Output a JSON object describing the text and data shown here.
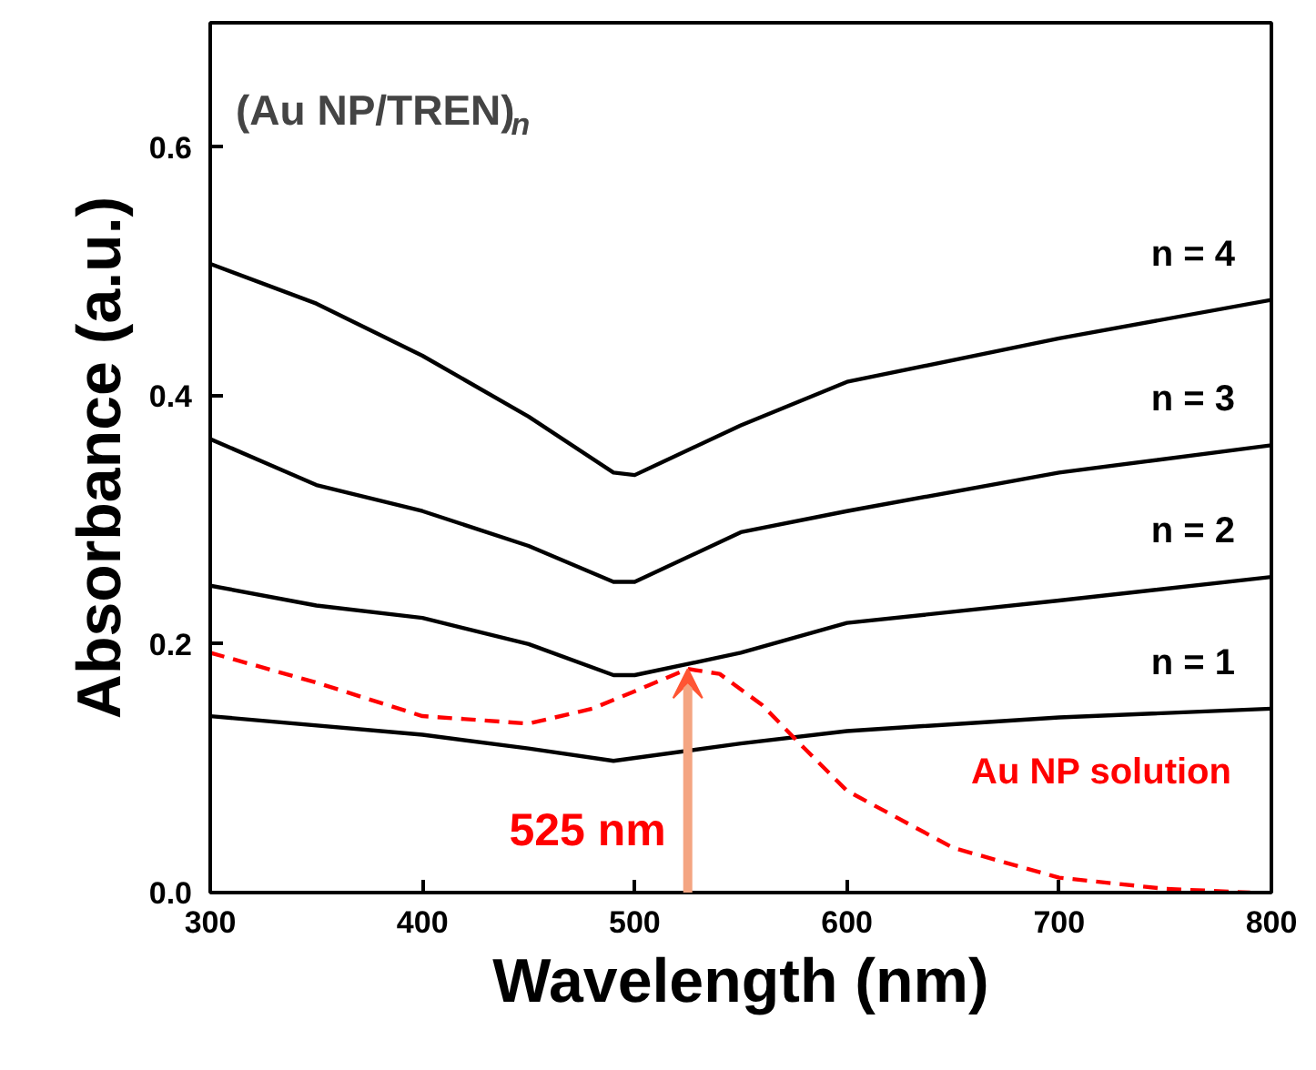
{
  "chart_data": {
    "type": "line",
    "title": "(Au NP/TREN)$_{n}$",
    "xlabel": "Wavelength (nm)",
    "ylabel": "Absorbance (a.u.)",
    "xlim": [
      300,
      800
    ],
    "ylim": [
      0,
      0.7
    ],
    "xticks": [
      300,
      400,
      500,
      600,
      700,
      800
    ],
    "yticks": [
      {
        "value": 0,
        "label": "0.0"
      },
      0.2,
      0.4,
      0.6
    ],
    "grid": false,
    "marker": "none",
    "annotations": [
      {
        "text": "525 nm",
        "x": 525,
        "y": 0.18
      }
    ],
    "series": [
      {
        "name": "n = 4",
        "color": "#000000",
        "line_style": "solid",
        "x": [
          300,
          350,
          400,
          450,
          490,
          500,
          550,
          600,
          700,
          800
        ],
        "values": [
          0.506,
          0.474,
          0.432,
          0.383,
          0.338,
          0.336,
          0.376,
          0.411,
          0.446,
          0.477
        ]
      },
      {
        "name": "n = 3",
        "color": "#000000",
        "line_style": "solid",
        "x": [
          300,
          350,
          400,
          450,
          490,
          500,
          550,
          600,
          700,
          800
        ],
        "values": [
          0.365,
          0.328,
          0.307,
          0.279,
          0.25,
          0.25,
          0.29,
          0.307,
          0.338,
          0.36
        ]
      },
      {
        "name": "n = 2",
        "color": "#000000",
        "line_style": "solid",
        "x": [
          300,
          350,
          400,
          450,
          490,
          500,
          550,
          600,
          700,
          800
        ],
        "values": [
          0.247,
          0.231,
          0.221,
          0.2,
          0.175,
          0.175,
          0.193,
          0.217,
          0.235,
          0.254
        ]
      },
      {
        "name": "n = 1",
        "color": "#000000",
        "line_style": "solid",
        "x": [
          300,
          400,
          450,
          490,
          550,
          600,
          700,
          800
        ],
        "values": [
          0.142,
          0.127,
          0.116,
          0.106,
          0.12,
          0.13,
          0.141,
          0.148
        ]
      },
      {
        "name": "Au NP solution",
        "color": "#ff0000",
        "line_style": "dashed",
        "x": [
          300,
          350,
          400,
          450,
          480,
          500,
          525,
          540,
          560,
          580,
          600,
          650,
          700,
          750,
          790
        ],
        "values": [
          0.193,
          0.169,
          0.142,
          0.136,
          0.148,
          0.162,
          0.18,
          0.176,
          0.151,
          0.116,
          0.082,
          0.036,
          0.012,
          0.003,
          0.0
        ]
      }
    ]
  }
}
